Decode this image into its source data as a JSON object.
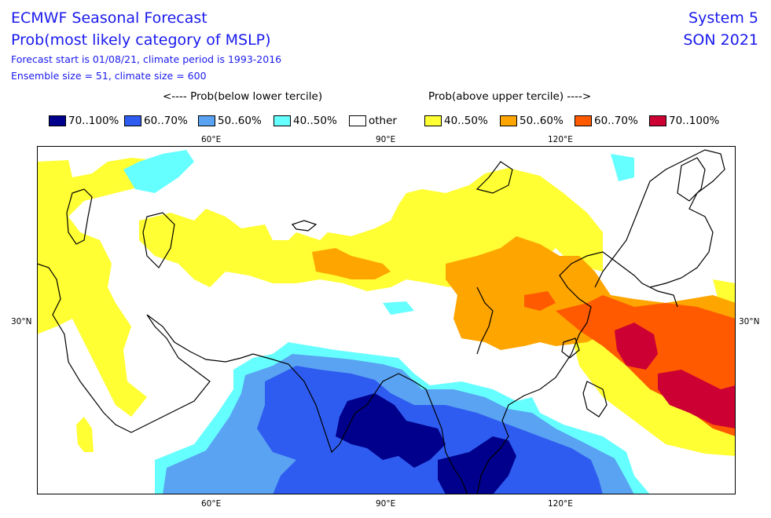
{
  "header": {
    "title": "ECMWF Seasonal Forecast",
    "subtitle": "Prob(most likely category of MSLP)",
    "info_line1": "Forecast start is 01/08/21, climate period is 1993-2016",
    "info_line2": "Ensemble size = 51, climate size = 600",
    "system": "System 5",
    "season": "SON 2021"
  },
  "legend": {
    "below_label": "<---- Prob(below lower tercile)",
    "above_label": "Prob(above upper tercile) ---->",
    "items": [
      {
        "label": "70..100%",
        "color": "#00008c"
      },
      {
        "label": "60..70%",
        "color": "#2f5cf0"
      },
      {
        "label": "50..60%",
        "color": "#5aa3f2"
      },
      {
        "label": "40..50%",
        "color": "#66ffff"
      },
      {
        "label": "other",
        "color": "#ffffff"
      },
      {
        "label": "40..50%",
        "color": "#ffff33"
      },
      {
        "label": "50..60%",
        "color": "#ffa500"
      },
      {
        "label": "60..70%",
        "color": "#ff5a00"
      },
      {
        "label": "70..100%",
        "color": "#cc0033"
      }
    ]
  },
  "map": {
    "lon_labels": [
      "60°E",
      "90°E",
      "120°E"
    ],
    "lat_labels": [
      "30°N"
    ]
  }
}
